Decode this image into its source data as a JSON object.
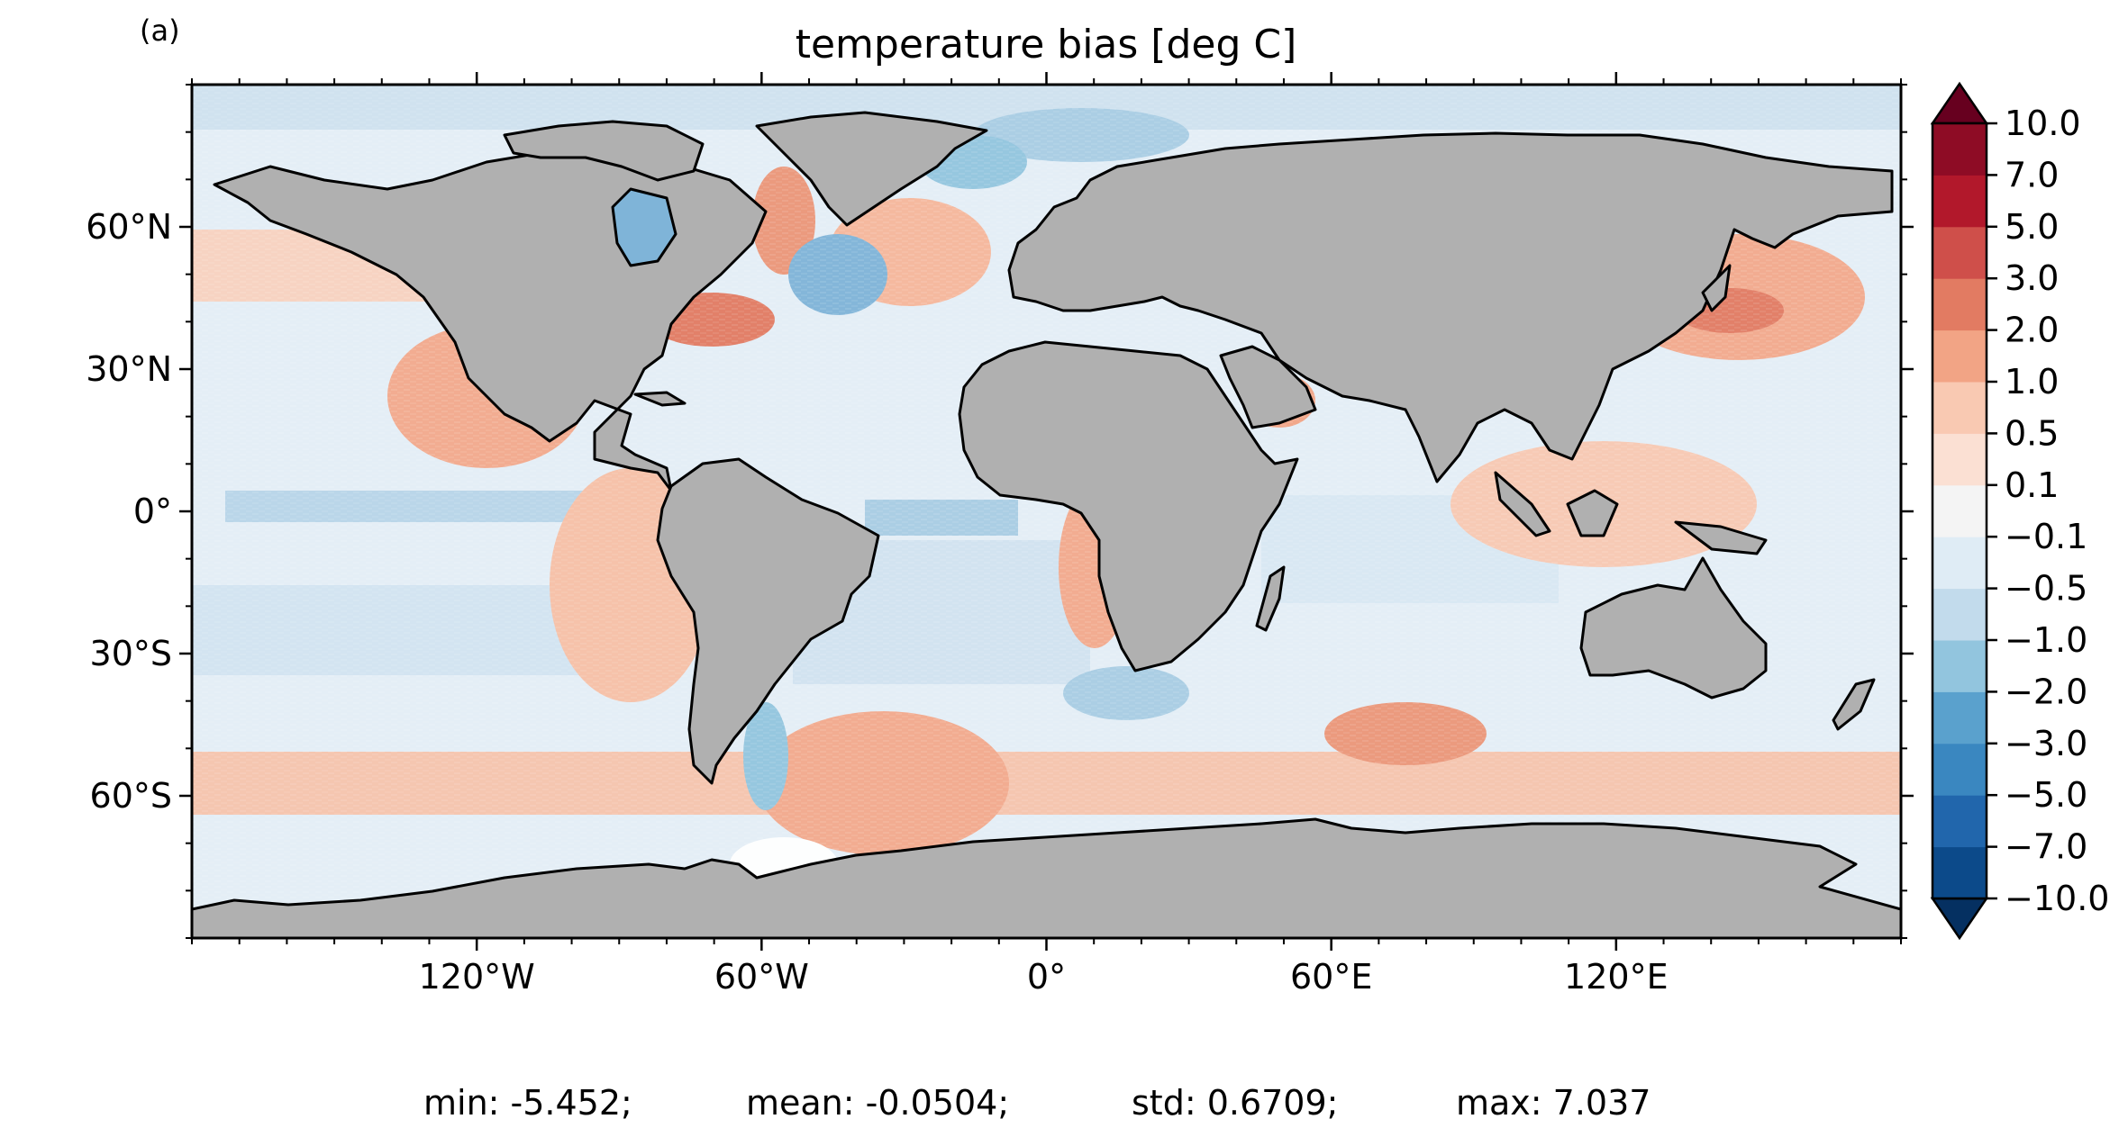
{
  "panel_label": "(a)",
  "title": "temperature bias [deg C]",
  "stats": {
    "min": "min: -5.452;",
    "mean": "mean: -0.0504;",
    "std": "std: 0.6709;",
    "max": "max: 7.037"
  },
  "map": {
    "projection": "PlateCarree",
    "lon_range": [
      -180,
      180
    ],
    "lat_range": [
      -90,
      90
    ],
    "land_color": "#b0b0b0",
    "coastline_color": "#000000",
    "x_ticks": [
      {
        "lon": -120,
        "label": "120°W"
      },
      {
        "lon": -60,
        "label": "60°W"
      },
      {
        "lon": 0,
        "label": "0°"
      },
      {
        "lon": 60,
        "label": "60°E"
      },
      {
        "lon": 120,
        "label": "120°E"
      }
    ],
    "y_ticks": [
      {
        "lat": 60,
        "label": "60°N"
      },
      {
        "lat": 30,
        "label": "30°N"
      },
      {
        "lat": 0,
        "label": "0°"
      },
      {
        "lat": -30,
        "label": "30°S"
      },
      {
        "lat": -60,
        "label": "60°S"
      }
    ]
  },
  "colorbar": {
    "extend": "both",
    "over_color": "#67001f",
    "under_color": "#053061",
    "boundaries": [
      "-10.0",
      "-7.0",
      "-5.0",
      "-3.0",
      "-2.0",
      "-1.0",
      "-0.5",
      "-0.1",
      "0.1",
      "0.5",
      "1.0",
      "2.0",
      "3.0",
      "5.0",
      "7.0",
      "10.0"
    ],
    "tick_labels": [
      "−10.0",
      "−7.0",
      "−5.0",
      "−3.0",
      "−2.0",
      "−1.0",
      "−0.5",
      "−0.1",
      "0.1",
      "0.5",
      "1.0",
      "2.0",
      "3.0",
      "5.0",
      "7.0",
      "10.0"
    ],
    "colors": [
      "#0c4a8a",
      "#2166ac",
      "#3a87c0",
      "#5aa1cd",
      "#92c5de",
      "#c2dbec",
      "#dfecf5",
      "#f4f4f4",
      "#fbe0d3",
      "#f9c9b2",
      "#f2a485",
      "#e27b62",
      "#cf4f4a",
      "#b2182b",
      "#8e0c25"
    ]
  }
}
